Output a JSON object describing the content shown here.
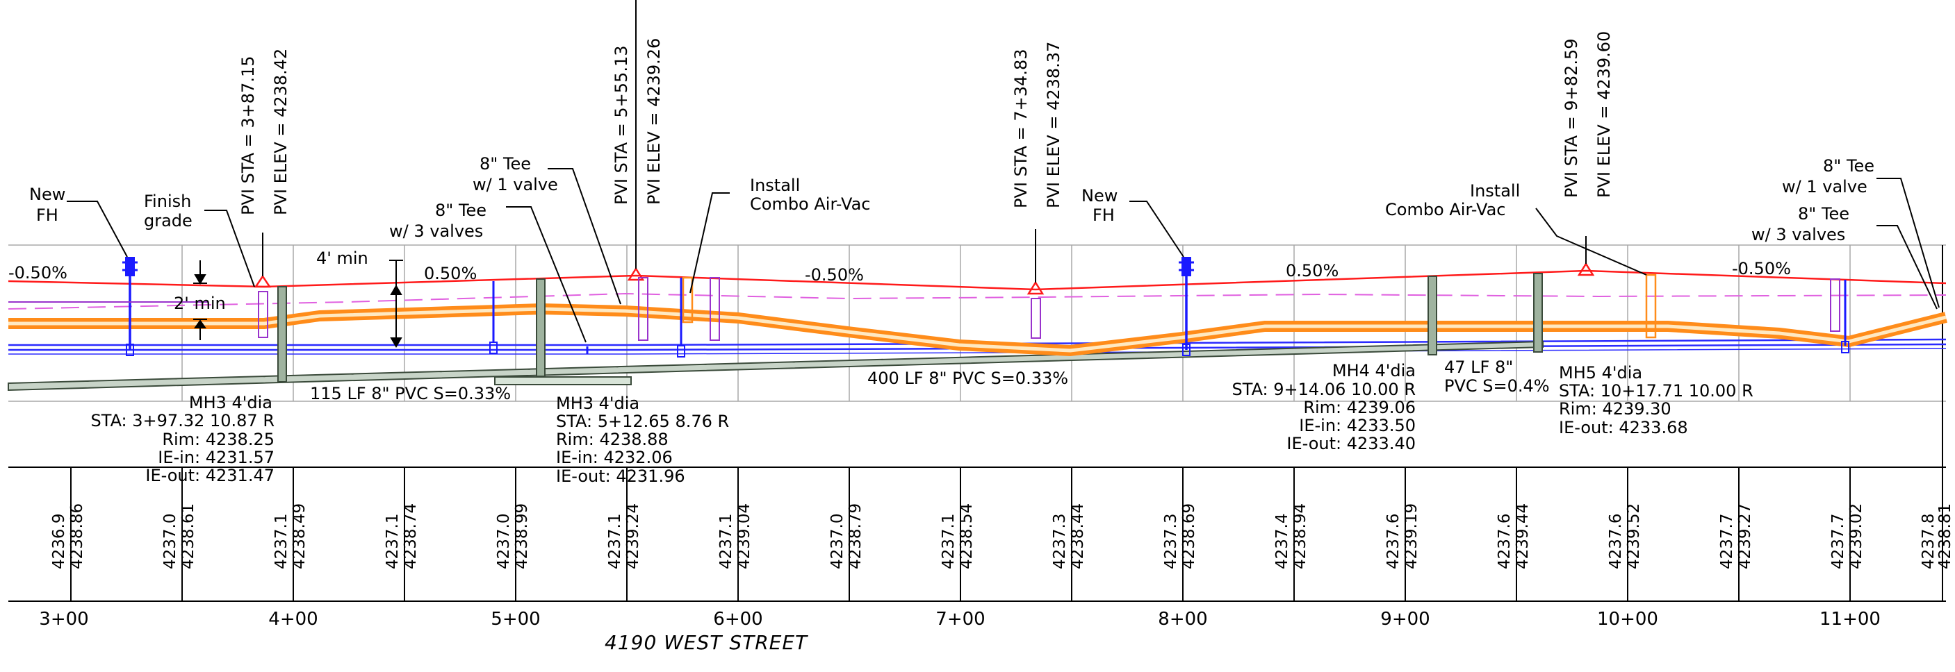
{
  "title": "4190 WEST STREET",
  "stations": [
    "3+00",
    "4+00",
    "5+00",
    "6+00",
    "7+00",
    "8+00",
    "9+00",
    "10+00",
    "11+00"
  ],
  "elevation_pairs": [
    {
      "existing": "4236.9",
      "proposed": "4238.86"
    },
    {
      "existing": "4237.0",
      "proposed": "4238.61"
    },
    {
      "existing": "4237.1",
      "proposed": "4238.49"
    },
    {
      "existing": "4237.1",
      "proposed": "4238.74"
    },
    {
      "existing": "4237.0",
      "proposed": "4238.99"
    },
    {
      "existing": "4237.1",
      "proposed": "4239.24"
    },
    {
      "existing": "4237.1",
      "proposed": "4239.04"
    },
    {
      "existing": "4237.0",
      "proposed": "4238.79"
    },
    {
      "existing": "4237.1",
      "proposed": "4238.54"
    },
    {
      "existing": "4237.3",
      "proposed": "4238.44"
    },
    {
      "existing": "4237.3",
      "proposed": "4238.69"
    },
    {
      "existing": "4237.4",
      "proposed": "4238.94"
    },
    {
      "existing": "4237.6",
      "proposed": "4239.19"
    },
    {
      "existing": "4237.6",
      "proposed": "4239.44"
    },
    {
      "existing": "4237.6",
      "proposed": "4239.52"
    },
    {
      "existing": "4237.7",
      "proposed": "4239.27"
    },
    {
      "existing": "4237.7",
      "proposed": "4239.02"
    },
    {
      "existing": "4237.8",
      "proposed": "4238.81"
    }
  ],
  "pvis": [
    {
      "sta": "PVI  STA  =  3+87.15",
      "elev": "PVI  ELEV  =  4238.42"
    },
    {
      "sta": "PVI  STA  =  5+55.13",
      "elev": "PVI  ELEV  =  4239.26"
    },
    {
      "sta": "PVI  STA  =  7+34.83",
      "elev": "PVI  ELEV  =  4238.37"
    },
    {
      "sta": "PVI  STA  =  9+82.59",
      "elev": "PVI  ELEV  =  4239.60"
    }
  ],
  "grades": [
    "-0.50%",
    "0.50%",
    "-0.50%",
    "0.50%",
    "-0.50%"
  ],
  "callouts": {
    "new_fh": [
      "New",
      "FH"
    ],
    "finish_grade": [
      "Finish",
      "grade"
    ],
    "four_min": "4' min",
    "two_min": "2' min",
    "tee_one_valve": [
      "8\" Tee",
      "w/  1  valve"
    ],
    "tee_three_valves": [
      "8\" Tee",
      "w/  3  valves"
    ],
    "air_vac": [
      "Install",
      "Combo  Air-Vac"
    ]
  },
  "pipes": [
    "115  LF  8\"  PVC  S=0.33%",
    "400  LF  8\"  PVC  S=0.33%",
    [
      "47  LF  8\"",
      "PVC  S=0.4%"
    ]
  ],
  "manholes": [
    [
      "MH3  4'dia",
      "STA:  3+97.32  10.87  R",
      "Rim:  4238.25",
      "IE-in:  4231.57",
      "IE-out:  4231.47"
    ],
    [
      "MH3  4'dia",
      "STA:  5+12.65  8.76  R",
      "Rim:  4238.88",
      "IE-in:  4232.06",
      "IE-out:  4231.96"
    ],
    [
      "MH4  4'dia",
      "STA:  9+14.06  10.00  R",
      "Rim:  4239.06",
      "IE-in:  4233.50",
      "IE-out:  4233.40"
    ],
    [
      "MH5  4'dia",
      "STA:  10+17.71  10.00  R",
      "Rim:  4239.30",
      "IE-out:  4233.68"
    ]
  ],
  "colors": {
    "grade_line": "#ff1a1a",
    "water_main": "#ff8c1a",
    "water_main_inner": "#ffe9c2",
    "sewer_pipe": "#2a2aff",
    "hydrant": "#1a1aff",
    "manhole_fill": "#9fb39f",
    "existing_ground": "#e060e0",
    "valve": "#9933cc",
    "grid": "#a8a8a8"
  }
}
